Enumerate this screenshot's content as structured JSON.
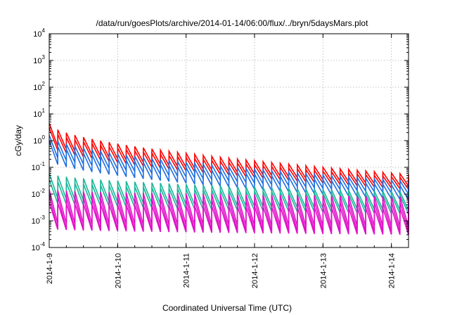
{
  "chart_data": {
    "type": "line",
    "title": "/data/run/goesPlots/archive/2014-01-14/06:00/flux/../bryn/5daysMars.plot",
    "xlabel": "Coordinated Universal Time (UTC)",
    "ylabel": "cGy/day",
    "yscale": "log",
    "ylim": [
      0.0001,
      10000
    ],
    "xlim": [
      "2014-01-09T00:00",
      "2014-01-14T06:00"
    ],
    "grid": true,
    "x_tick_labels": [
      "2014-1-9",
      "2014-1-10",
      "2014-1-11",
      "2014-1-12",
      "2014-1-13",
      "2014-1-14"
    ],
    "y_ticks": [
      {
        "value": 0.0001,
        "base": "10",
        "exp": "-4"
      },
      {
        "value": 0.001,
        "base": "10",
        "exp": "-3"
      },
      {
        "value": 0.01,
        "base": "10",
        "exp": "-2"
      },
      {
        "value": 0.1,
        "base": "10",
        "exp": "-1"
      },
      {
        "value": 1,
        "base": "10",
        "exp": "0"
      },
      {
        "value": 10,
        "base": "10",
        "exp": "1"
      },
      {
        "value": 100,
        "base": "10",
        "exp": "2"
      },
      {
        "value": 1000,
        "base": "10",
        "exp": "3"
      },
      {
        "value": 10000,
        "base": "10",
        "exp": "4"
      }
    ],
    "sawtooth_period_hours": 3,
    "series": [
      {
        "color": "#ff0000",
        "peak_start": 4.5,
        "peak_end": 0.055,
        "trough_start": 1.0,
        "trough_end": 0.02
      },
      {
        "color": "#ff0000",
        "peak_start": 3.0,
        "peak_end": 0.04,
        "trough_start": 0.7,
        "trough_end": 0.015
      },
      {
        "color": "#1e6fe0",
        "peak_start": 1.6,
        "peak_end": 0.03,
        "trough_start": 0.35,
        "trough_end": 0.01
      },
      {
        "color": "#1e6fe0",
        "peak_start": 1.0,
        "peak_end": 0.02,
        "trough_start": 0.2,
        "trough_end": 0.006
      },
      {
        "color": "#1ab79a",
        "peak_start": 0.06,
        "peak_end": 0.012,
        "trough_start": 0.008,
        "trough_end": 0.0025
      },
      {
        "color": "#1ab79a",
        "peak_start": 0.035,
        "peak_end": 0.009,
        "trough_start": 0.005,
        "trough_end": 0.0018
      },
      {
        "color": "#e010c8",
        "peak_start": 0.015,
        "peak_end": 0.008,
        "trough_start": 0.0008,
        "trough_end": 0.0006
      },
      {
        "color": "#e010c8",
        "peak_start": 0.009,
        "peak_end": 0.005,
        "trough_start": 0.0005,
        "trough_end": 0.0004
      },
      {
        "color": "#e010c8",
        "peak_start": 0.005,
        "peak_end": 0.003,
        "trough_start": 0.0005,
        "trough_end": 0.0003
      }
    ]
  }
}
